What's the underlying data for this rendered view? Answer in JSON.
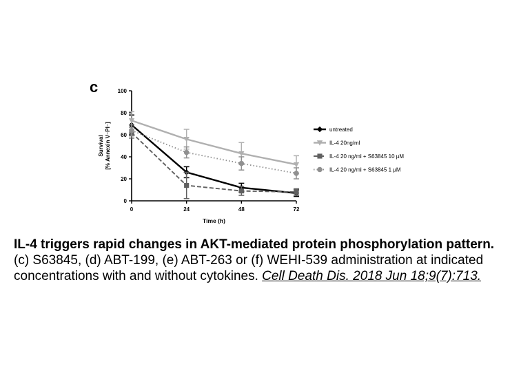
{
  "panel_label": "c",
  "caption": {
    "title": "IL-4 triggers rapid changes in AKT-mediated protein phosphorylation pattern.",
    "body": "(c) S63845, (d) ABT-199, (e) ABT-263 or (f) WEHI-539 administration at indicated concentrations with and without cytokines. ",
    "citation": "Cell Death Dis. 2018 Jun 18;9(7):713."
  },
  "chart_data": {
    "type": "line",
    "title": "",
    "xlabel": "Time (h)",
    "ylabel_lines": [
      "Survival",
      "[% Annexin V⁻PI⁻]"
    ],
    "x": [
      0,
      24,
      48,
      72
    ],
    "xticks": [
      "0",
      "24",
      "48",
      "72"
    ],
    "yticks": [
      "0",
      "20",
      "40",
      "60",
      "80",
      "100"
    ],
    "xlim": [
      0,
      72
    ],
    "ylim": [
      0,
      100
    ],
    "grid": false,
    "legend_position": "right",
    "series": [
      {
        "name": "untreated",
        "values": [
          69,
          26,
          12,
          7
        ],
        "errors": [
          9,
          5,
          4,
          3
        ],
        "color": "#000000",
        "dash": "solid",
        "marker": "diamond"
      },
      {
        "name": "IL-4 20ng/ml",
        "values": [
          73,
          56,
          43,
          33
        ],
        "errors": [
          8,
          9,
          10,
          8
        ],
        "color": "#b0b0b0",
        "dash": "solid",
        "marker": "triangle-down"
      },
      {
        "name": "IL-4 20 ng/ml + S63845 10 µM",
        "values": [
          62,
          14,
          9,
          8
        ],
        "errors": [
          5,
          12,
          4,
          3
        ],
        "color": "#606060",
        "dash": "dash",
        "marker": "square"
      },
      {
        "name": "IL-4 20 ng/ml + S63845 1 µM",
        "values": [
          64,
          44,
          34,
          25
        ],
        "errors": [
          5,
          5,
          6,
          5
        ],
        "color": "#909090",
        "dash": "dot",
        "marker": "circle"
      }
    ]
  }
}
